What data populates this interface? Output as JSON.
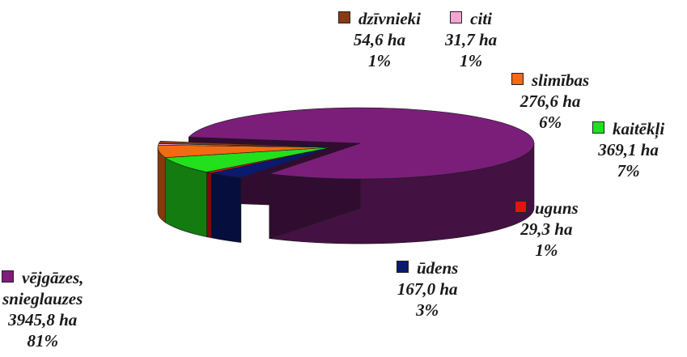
{
  "chart_data": {
    "type": "pie",
    "style": "3d-exploded",
    "unit": "ha",
    "slices": [
      {
        "key": "vejgazes",
        "name_lines": [
          "vējgāzes,",
          "snieglauzes"
        ],
        "value": 3945.8,
        "value_text": "3945,8 ha",
        "percent_text": "81%",
        "color": "#7B1E7A"
      },
      {
        "key": "udens",
        "name_lines": [
          "ūdens"
        ],
        "value": 167.0,
        "value_text": "167,0 ha",
        "percent_text": "3%",
        "color": "#0A1A6E"
      },
      {
        "key": "uguns",
        "name_lines": [
          "uguns"
        ],
        "value": 29.3,
        "value_text": "29,3 ha",
        "percent_text": "1%",
        "color": "#E51212"
      },
      {
        "key": "kaiteklji",
        "name_lines": [
          "kaitēkļi"
        ],
        "value": 369.1,
        "value_text": "369,1 ha",
        "percent_text": "7%",
        "color": "#22E01C"
      },
      {
        "key": "slimibas",
        "name_lines": [
          "slimības"
        ],
        "value": 276.6,
        "value_text": "276,6 ha",
        "percent_text": "6%",
        "color": "#F26A12"
      },
      {
        "key": "citi",
        "name_lines": [
          "citi"
        ],
        "value": 31.7,
        "value_text": "31,7 ha",
        "percent_text": "1%",
        "color": "#F4A6D2"
      },
      {
        "key": "dzivnieki",
        "name_lines": [
          "dzīvnieki"
        ],
        "value": 54.6,
        "value_text": "54,6 ha",
        "percent_text": "1%",
        "color": "#8A3A12"
      }
    ]
  }
}
